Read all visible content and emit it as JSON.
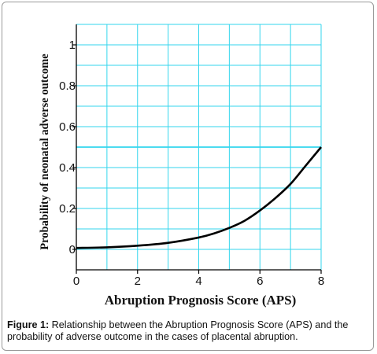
{
  "chart_data": {
    "type": "line",
    "title": "",
    "xlabel": "Abruption Prognosis Score (APS)",
    "ylabel": "Probability of neonatal adverse outcome",
    "xlim": [
      0,
      8
    ],
    "ylim": [
      -0.1,
      1.1
    ],
    "x_ticks": [
      "0",
      "2",
      "4",
      "6",
      "8"
    ],
    "y_ticks": [
      "0",
      "0.2",
      "0.4",
      "0.6",
      "0.8",
      "1"
    ],
    "grid": true,
    "highlight_line_y": 0.5,
    "series": [
      {
        "x": [
          0,
          1,
          2,
          3,
          4,
          4.5,
          5,
          5.5,
          6,
          6.5,
          7,
          7.5,
          8
        ],
        "values": [
          0.007,
          0.01,
          0.018,
          0.032,
          0.058,
          0.078,
          0.105,
          0.14,
          0.19,
          0.25,
          0.32,
          0.41,
          0.5
        ]
      }
    ],
    "colors": {
      "grid": "#33d6ee",
      "line": "#000000"
    }
  },
  "caption": {
    "label": "Figure 1:",
    "text": " Relationship between the Abruption Prognosis Score (APS) and the probability of adverse outcome in the cases of placental abruption."
  }
}
